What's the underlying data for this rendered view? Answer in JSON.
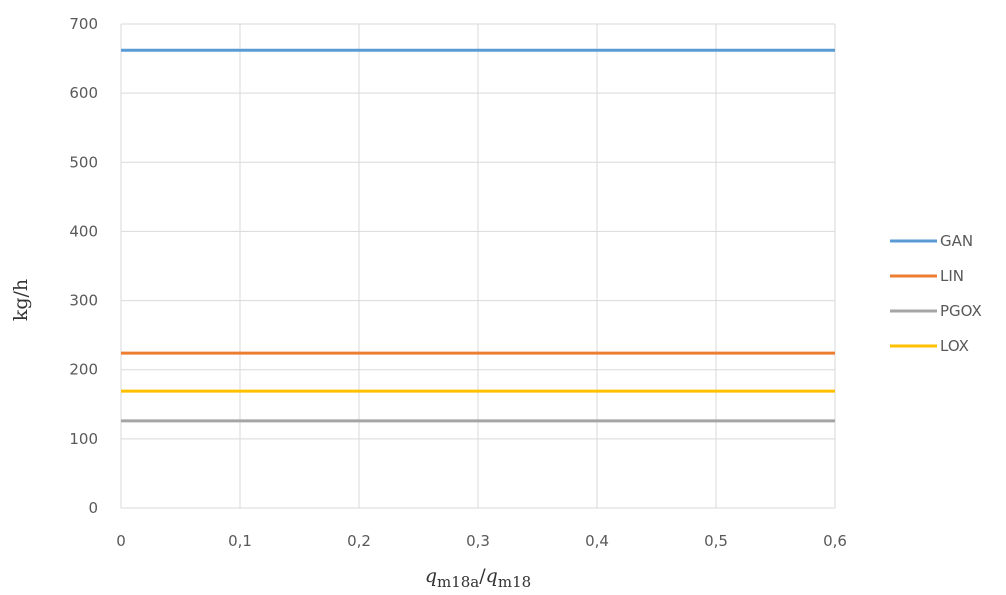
{
  "chart_data": {
    "type": "line",
    "title": "",
    "xlabel": {
      "base1": "q",
      "sub1": "m18a",
      "sep": "/",
      "base2": "q",
      "sub2": "m18"
    },
    "ylabel": "kg/h",
    "x": [
      0,
      0.1,
      0.2,
      0.3,
      0.4,
      0.5,
      0.6
    ],
    "x_tick_labels": [
      "0",
      "0,1",
      "0,2",
      "0,3",
      "0,4",
      "0,5",
      "0,6"
    ],
    "xlim": [
      0,
      0.6
    ],
    "ylim": [
      0,
      700
    ],
    "y_ticks": [
      0,
      100,
      200,
      300,
      400,
      500,
      600,
      700
    ],
    "y_tick_labels": [
      "0",
      "100",
      "200",
      "300",
      "400",
      "500",
      "600",
      "700"
    ],
    "grid": true,
    "legend_position": "right",
    "series": [
      {
        "name": "GAN",
        "color": "#5b9bd5",
        "values": [
          662,
          662,
          662,
          662,
          662,
          662,
          662
        ]
      },
      {
        "name": "LIN",
        "color": "#ed7d31",
        "values": [
          224,
          224,
          224,
          224,
          224,
          224,
          224
        ]
      },
      {
        "name": "PGOX",
        "color": "#a5a5a5",
        "values": [
          126,
          126,
          126,
          126,
          126,
          126,
          126
        ]
      },
      {
        "name": "LOX",
        "color": "#ffc000",
        "values": [
          169,
          169,
          169,
          169,
          169,
          169,
          169
        ]
      }
    ]
  }
}
